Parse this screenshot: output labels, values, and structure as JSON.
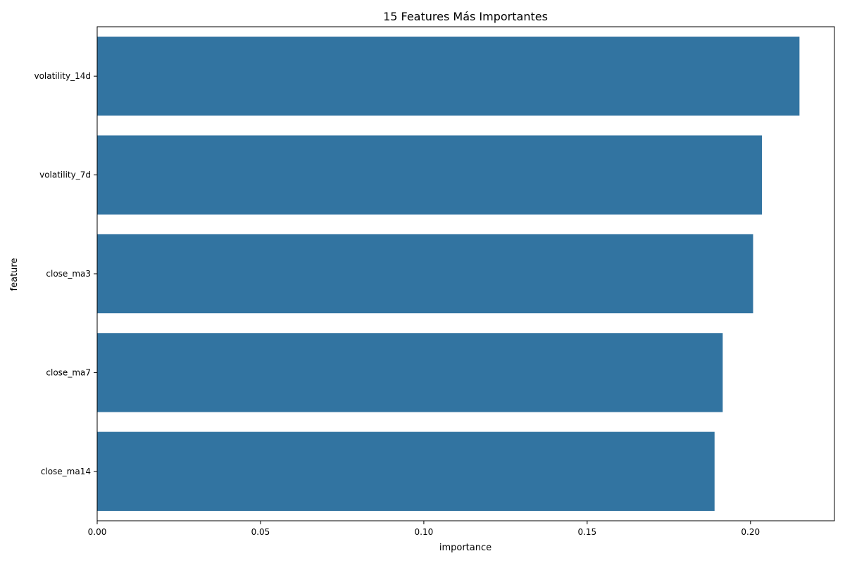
{
  "chart_data": {
    "type": "bar",
    "orientation": "horizontal",
    "title": "15 Features Más Importantes",
    "xlabel": "importance",
    "ylabel": "feature",
    "categories": [
      "volatility_14d",
      "volatility_7d",
      "close_ma3",
      "close_ma7",
      "close_ma14"
    ],
    "values": [
      0.215,
      0.2035,
      0.2008,
      0.1915,
      0.189
    ],
    "xlim": [
      0,
      0.2257
    ],
    "xticks": [
      0.0,
      0.05,
      0.1,
      0.15,
      0.2
    ],
    "xtick_labels": [
      "0.00",
      "0.05",
      "0.10",
      "0.15",
      "0.20"
    ],
    "bar_color": "#3274a1",
    "grid": false,
    "legend": "none"
  }
}
